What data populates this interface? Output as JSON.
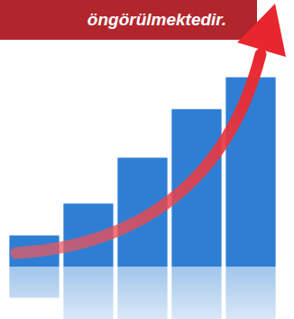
{
  "chart_data": {
    "type": "bar",
    "title": "öngörülmektedir.",
    "categories": [
      null,
      null,
      null,
      null,
      null
    ],
    "values": [
      32,
      65,
      112,
      162,
      195
    ],
    "color": "#2e7fd4",
    "ylim": [
      0,
      200
    ],
    "grid": false,
    "tick_labels": false
  }
}
